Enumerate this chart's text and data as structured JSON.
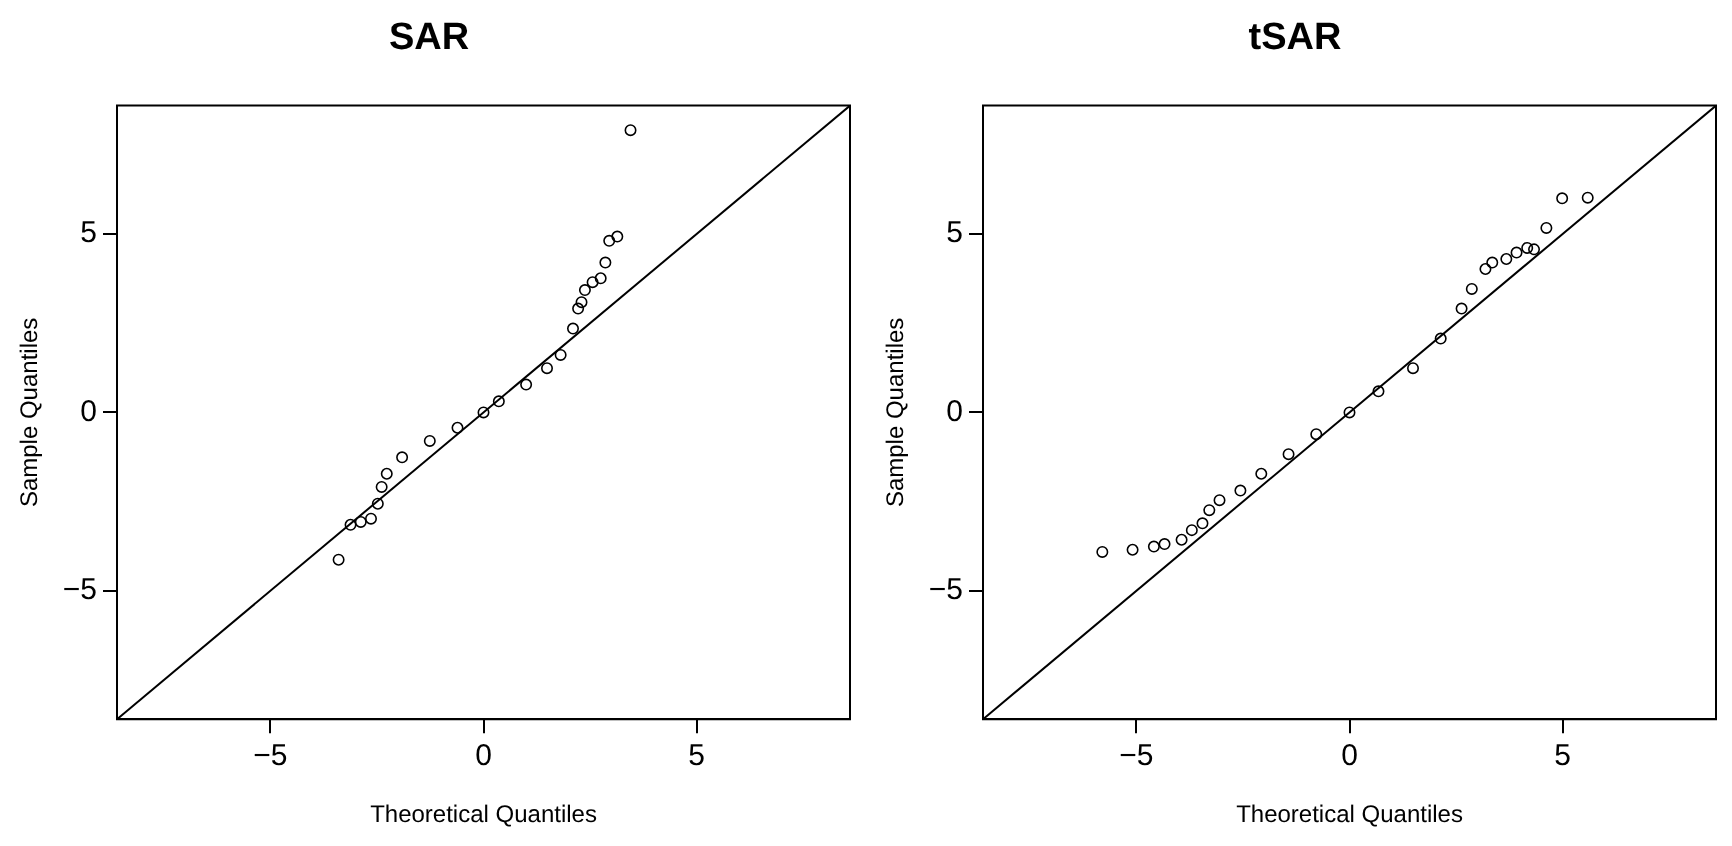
{
  "chart_data": [
    {
      "type": "scatter",
      "title": "SAR",
      "xlabel": "Theoretical Quantiles",
      "ylabel": "Sample Quantiles",
      "xlim": [
        -8.6,
        8.6
      ],
      "ylim": [
        -8.6,
        8.6
      ],
      "xticks": [
        -5,
        0,
        5
      ],
      "yticks": [
        -5,
        0,
        5
      ],
      "grid": false,
      "legend": false,
      "marker": "circle",
      "series": [
        {
          "color": "#000000",
          "x": [
            -3.4,
            -3.12,
            -2.88,
            -2.64,
            -2.48,
            -2.39,
            -2.27,
            -1.91,
            -1.26,
            -0.61,
            0,
            0.36,
            1.0,
            1.49,
            1.81,
            2.1,
            2.22,
            2.3,
            2.38,
            2.56,
            2.75,
            2.86,
            2.95,
            3.14,
            3.45
          ],
          "values": [
            -4.13,
            -3.15,
            -3.07,
            -2.98,
            -2.56,
            -2.09,
            -1.72,
            -1.26,
            -0.8,
            -0.43,
            0,
            0.31,
            0.78,
            1.24,
            1.61,
            2.35,
            2.91,
            3.09,
            3.43,
            3.65,
            3.76,
            4.2,
            4.81,
            4.93,
            7.91
          ]
        },
        {
          "type": "line",
          "color": "#000000",
          "marker": "none",
          "x": [
            -8.6,
            8.6
          ],
          "values": [
            -8.6,
            8.6
          ]
        }
      ]
    },
    {
      "type": "scatter",
      "title": "tSAR",
      "xlabel": "Theoretical Quantiles",
      "ylabel": "Sample Quantiles",
      "xlim": [
        -8.6,
        8.6
      ],
      "ylim": [
        -8.6,
        8.6
      ],
      "xticks": [
        -5,
        0,
        5
      ],
      "yticks": [
        -5,
        0,
        5
      ],
      "grid": false,
      "legend": false,
      "marker": "circle",
      "series": [
        {
          "color": "#000000",
          "x": [
            -5.8,
            -5.09,
            -4.59,
            -4.34,
            -3.94,
            -3.7,
            -3.45,
            -3.29,
            -3.05,
            -2.56,
            -2.07,
            -1.43,
            -0.78,
            0,
            0.68,
            1.49,
            2.14,
            2.63,
            2.87,
            3.19,
            3.35,
            3.68,
            3.92,
            4.17,
            4.33,
            4.62,
            4.99,
            5.59
          ],
          "values": [
            -3.91,
            -3.85,
            -3.76,
            -3.69,
            -3.57,
            -3.3,
            -3.11,
            -2.74,
            -2.46,
            -2.19,
            -1.72,
            -1.17,
            -0.61,
            0,
            0.59,
            1.24,
            2.07,
            2.91,
            3.46,
            4.02,
            4.2,
            4.3,
            4.48,
            4.61,
            4.57,
            5.17,
            6.0,
            6.02
          ]
        },
        {
          "type": "line",
          "color": "#000000",
          "marker": "none",
          "x": [
            -8.6,
            8.6
          ],
          "values": [
            -8.6,
            8.6
          ]
        }
      ]
    }
  ]
}
